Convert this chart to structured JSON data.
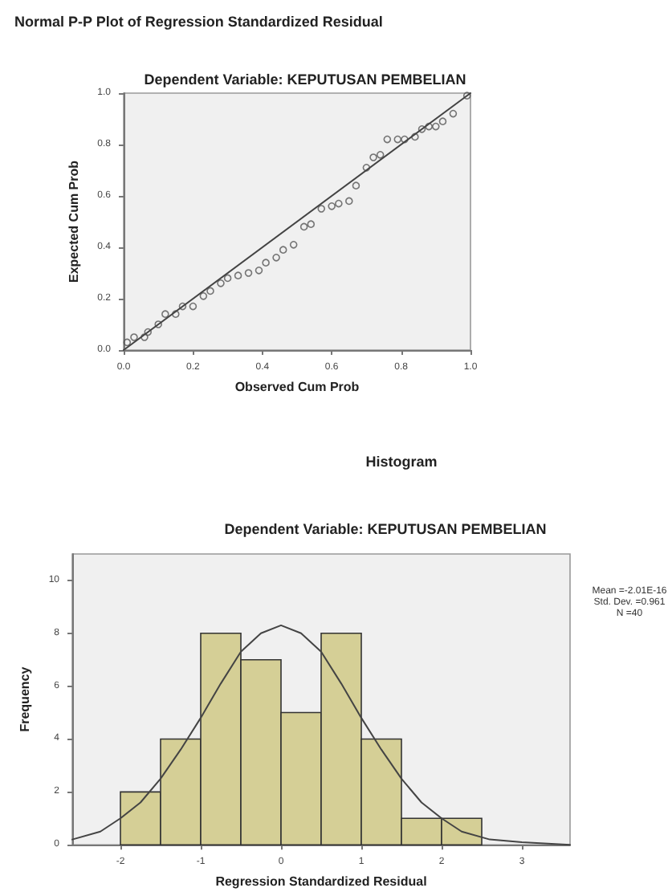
{
  "chart_data": [
    {
      "type": "scatter",
      "title": "Normal P-P Plot of Regression Standardized Residual",
      "subtitle": "Dependent Variable: KEPUTUSAN PEMBELIAN",
      "xlabel": "Observed Cum Prob",
      "ylabel": "Expected Cum Prob",
      "xlim": [
        0,
        1
      ],
      "ylim": [
        0,
        1
      ],
      "xticks": [
        {
          "value": 0,
          "label": "0.0"
        },
        0.2,
        0.4,
        0.6,
        0.8,
        {
          "value": 1,
          "label": "1.0"
        }
      ],
      "yticks": [
        {
          "value": 0,
          "label": "0.0"
        },
        0.2,
        0.4,
        0.6,
        0.8,
        {
          "value": 1,
          "label": "1.0"
        }
      ],
      "grid": false,
      "series": [
        {
          "type": "scatter",
          "marker": "circle",
          "color": "#555555",
          "x": [
            0.01,
            0.03,
            0.06,
            0.07,
            0.1,
            0.12,
            0.15,
            0.17,
            0.2,
            0.23,
            0.25,
            0.28,
            0.3,
            0.33,
            0.36,
            0.39,
            0.41,
            0.44,
            0.46,
            0.49,
            0.52,
            0.54,
            0.57,
            0.6,
            0.62,
            0.65,
            0.67,
            0.7,
            0.72,
            0.74,
            0.76,
            0.79,
            0.81,
            0.84,
            0.86,
            0.88,
            0.9,
            0.92,
            0.95,
            0.99
          ],
          "values": [
            0.03,
            0.05,
            0.05,
            0.07,
            0.1,
            0.14,
            0.14,
            0.17,
            0.17,
            0.21,
            0.23,
            0.26,
            0.28,
            0.29,
            0.3,
            0.31,
            0.34,
            0.36,
            0.39,
            0.41,
            0.48,
            0.49,
            0.55,
            0.56,
            0.57,
            0.58,
            0.64,
            0.71,
            0.75,
            0.76,
            0.82,
            0.82,
            0.82,
            0.83,
            0.86,
            0.87,
            0.87,
            0.89,
            0.92,
            0.99
          ]
        },
        {
          "type": "line",
          "marker": "none",
          "color": "#444444",
          "x": [
            0,
            1
          ],
          "values": [
            0,
            1
          ]
        }
      ]
    },
    {
      "type": "histogram",
      "title": "Histogram",
      "subtitle": "Dependent Variable: KEPUTUSAN PEMBELIAN",
      "xlabel": "Regression Standardized Residual",
      "ylabel": "Frequency",
      "xlim": [
        -2.6,
        3.6
      ],
      "ylim": [
        0,
        11
      ],
      "xticks": [
        -2,
        -1,
        0,
        1,
        2,
        3
      ],
      "yticks": [
        0,
        2,
        4,
        6,
        8,
        10
      ],
      "grid": false,
      "color": "#d5cf96",
      "bins": [
        -2,
        -1.5,
        -1,
        -0.5,
        0,
        0.5,
        1,
        1.5,
        2,
        2.5
      ],
      "values": [
        2,
        4,
        8,
        7,
        5,
        8,
        4,
        1,
        1
      ],
      "annotations": [
        "Mean =-2.01E-16",
        "Std. Dev. =0.961",
        "N =40"
      ],
      "series": [
        {
          "type": "line",
          "marker": "none",
          "color": "#444444",
          "x": [
            -2.6,
            -2.25,
            -2,
            -1.75,
            -1.5,
            -1.25,
            -1,
            -0.75,
            -0.5,
            -0.25,
            0,
            0.25,
            0.5,
            0.75,
            1,
            1.25,
            1.5,
            1.75,
            2,
            2.25,
            2.6,
            3,
            3.6
          ],
          "values": [
            0.2,
            0.5,
            1,
            1.6,
            2.5,
            3.6,
            4.8,
            6.1,
            7.3,
            8,
            8.3,
            8,
            7.3,
            6.1,
            4.8,
            3.6,
            2.5,
            1.6,
            1,
            0.5,
            0.2,
            0.1,
            0
          ]
        }
      ]
    }
  ]
}
